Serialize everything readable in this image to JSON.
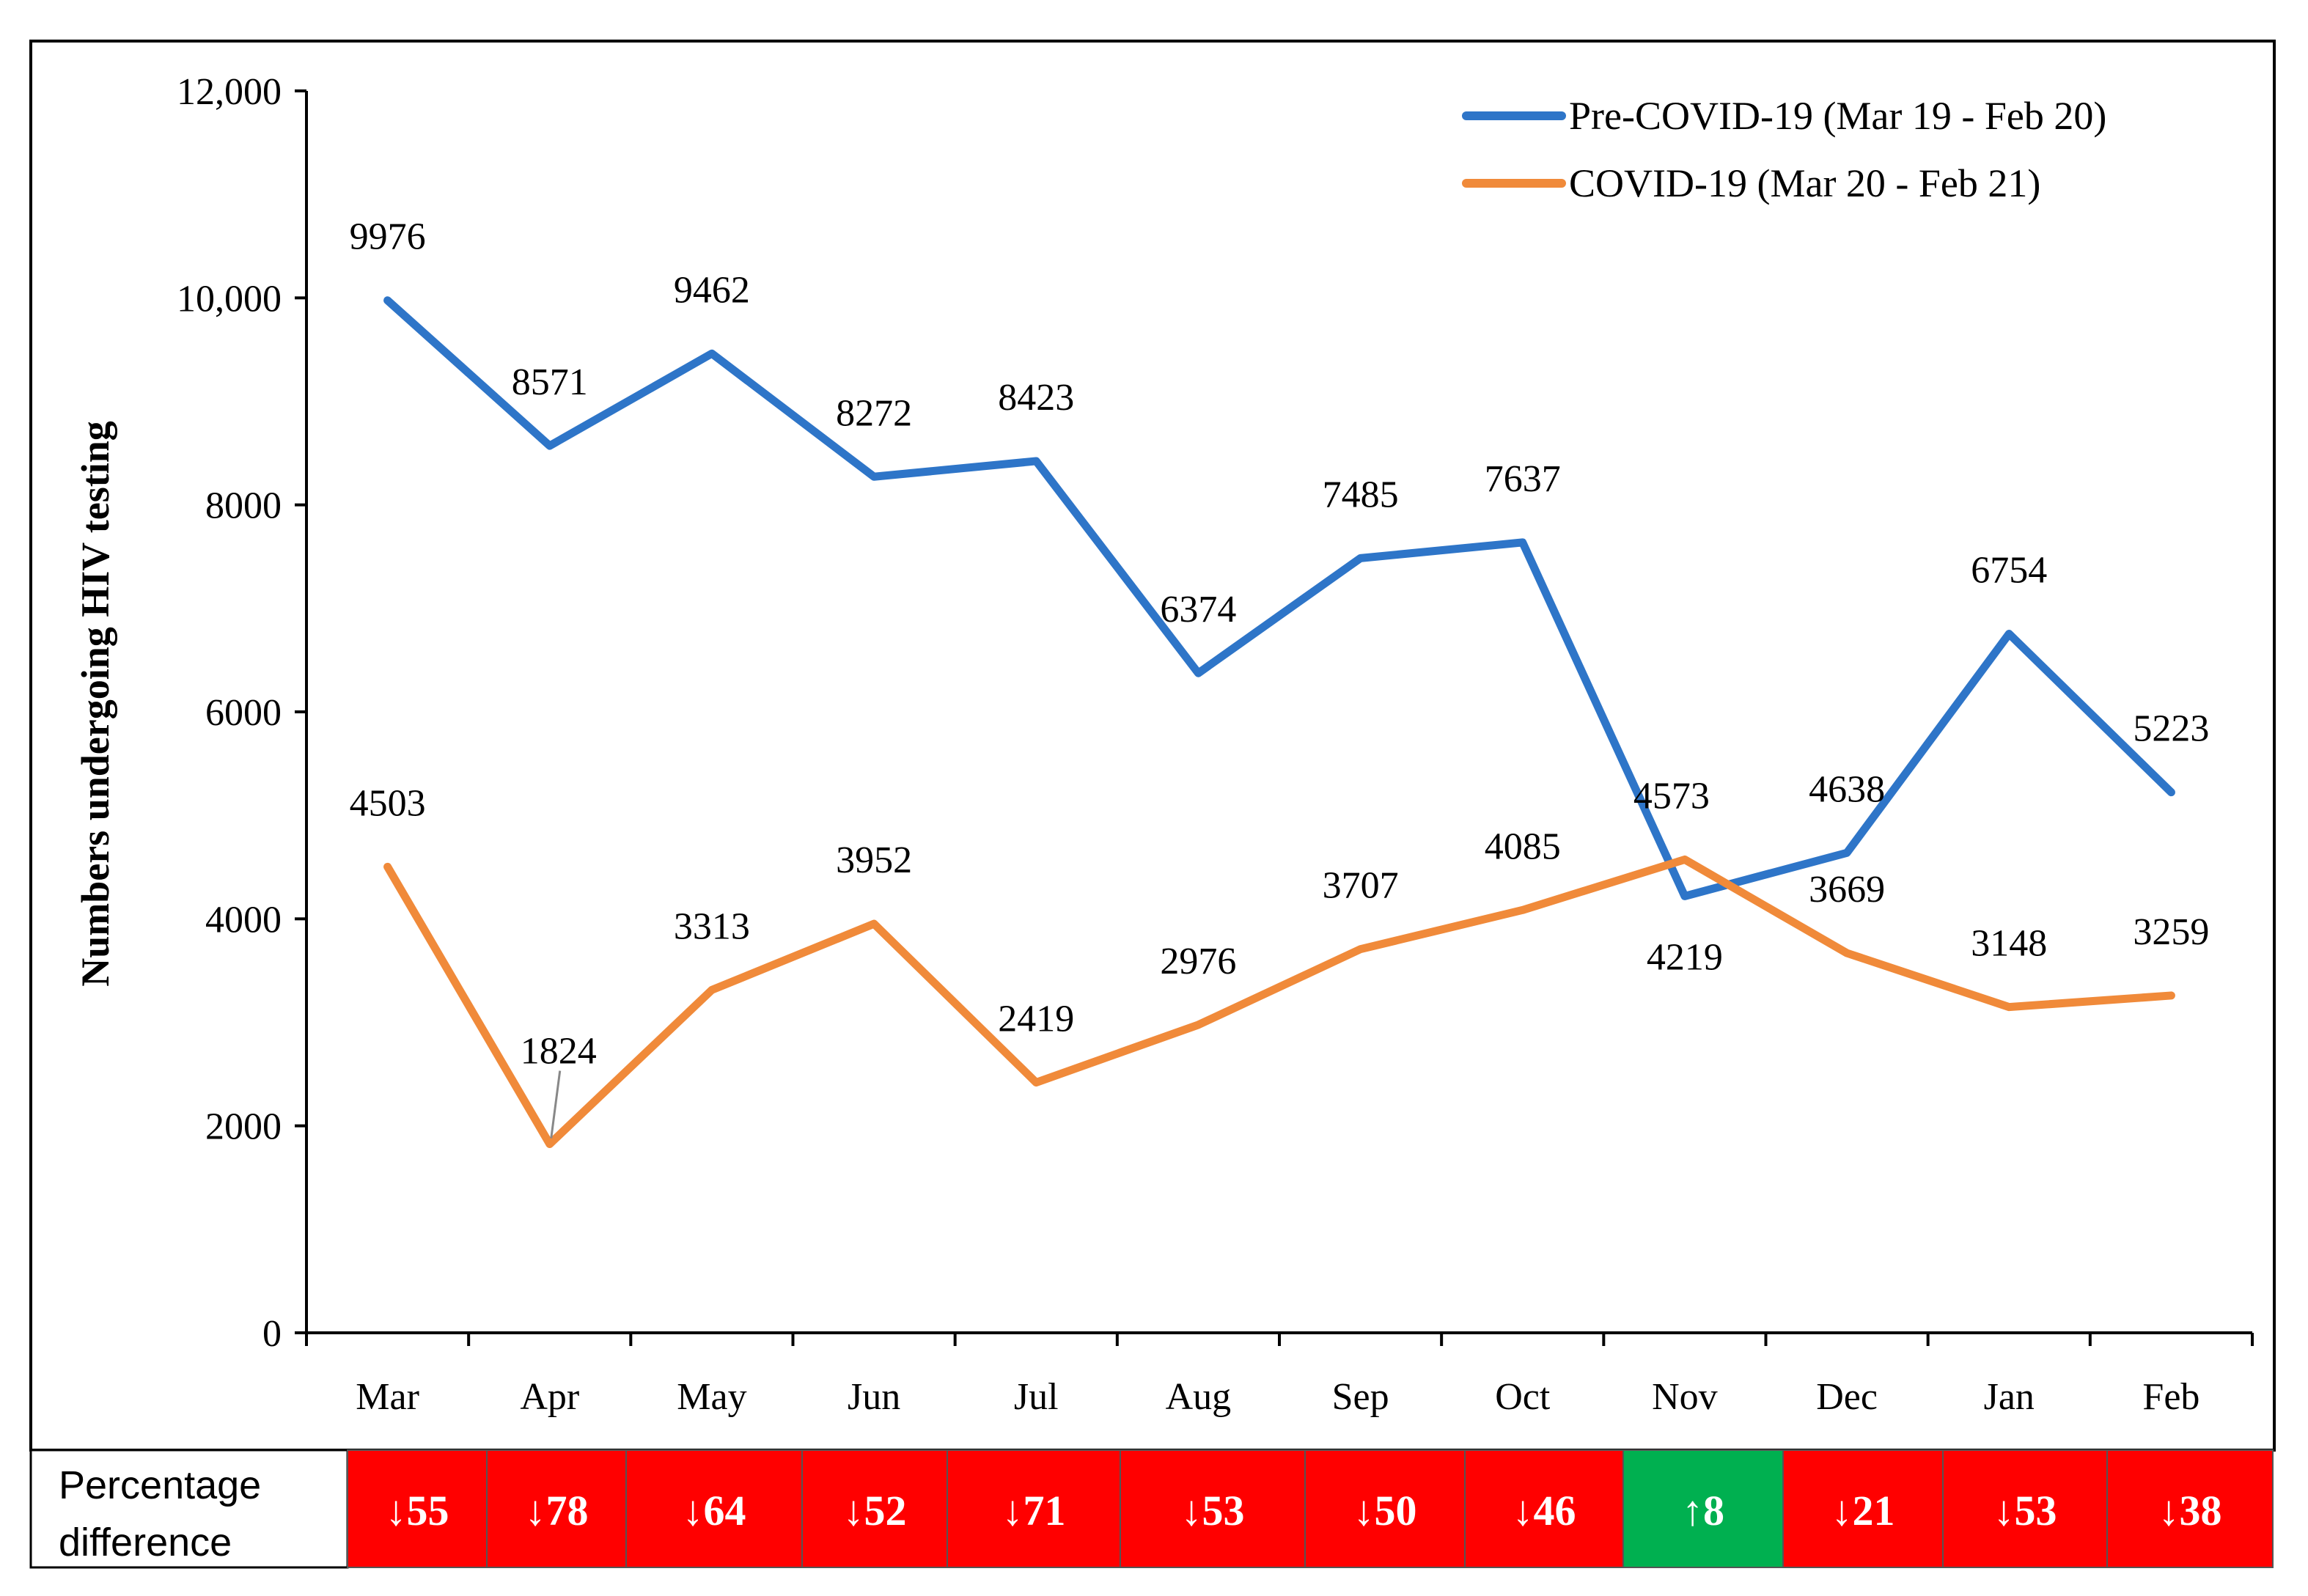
{
  "chart_data": {
    "type": "line",
    "categories": [
      "Mar",
      "Apr",
      "May",
      "Jun",
      "Jul",
      "Aug",
      "Sep",
      "Oct",
      "Nov",
      "Dec",
      "Jan",
      "Feb"
    ],
    "ylabel": "Numbers undergoing HIV testing",
    "xlabel": "",
    "ylim": [
      0,
      12000
    ],
    "yticks": [
      0,
      2000,
      4000,
      6000,
      8000,
      10000,
      12000
    ],
    "ytick_labels": [
      "0",
      "2000",
      "4000",
      "6000",
      "8000",
      "10,000",
      "12,000"
    ],
    "legend_position": "top-right",
    "series": [
      {
        "name": "Pre-COVID-19 (Mar 19 - Feb 20)",
        "color": "#2E75C8",
        "values": [
          9976,
          8571,
          9462,
          8272,
          8423,
          6374,
          7485,
          7637,
          4219,
          4638,
          6754,
          5223
        ],
        "labels": [
          "9976",
          "8571",
          "9462",
          "8272",
          "8423",
          "6374",
          "7485",
          "7637",
          "4219",
          "4638",
          "6754",
          "5223"
        ]
      },
      {
        "name": "COVID-19 (Mar 20 - Feb 21)",
        "color": "#F08A3A",
        "values": [
          4503,
          1824,
          3313,
          3952,
          2419,
          2976,
          3707,
          4085,
          4573,
          3669,
          3148,
          3259
        ],
        "labels": [
          "4503",
          "1824",
          "3313",
          "3952",
          "2419",
          "2976",
          "3707",
          "4085",
          "4573",
          "3669",
          "3148",
          "3259"
        ]
      }
    ],
    "percentage_difference": {
      "header": "Percentage difference",
      "header_lines": [
        "Percentage",
        "difference"
      ],
      "values": [
        "↓55",
        "↓78",
        "↓64",
        "↓52",
        "↓71",
        "↓53",
        "↓50",
        "↓46",
        "↑8",
        "↓21",
        "↓53",
        "↓38"
      ],
      "colors": [
        "#FF0000",
        "#FF0000",
        "#FF0000",
        "#FF0000",
        "#FF0000",
        "#FF0000",
        "#FF0000",
        "#FF0000",
        "#00B050",
        "#FF0000",
        "#FF0000",
        "#FF0000"
      ]
    }
  }
}
